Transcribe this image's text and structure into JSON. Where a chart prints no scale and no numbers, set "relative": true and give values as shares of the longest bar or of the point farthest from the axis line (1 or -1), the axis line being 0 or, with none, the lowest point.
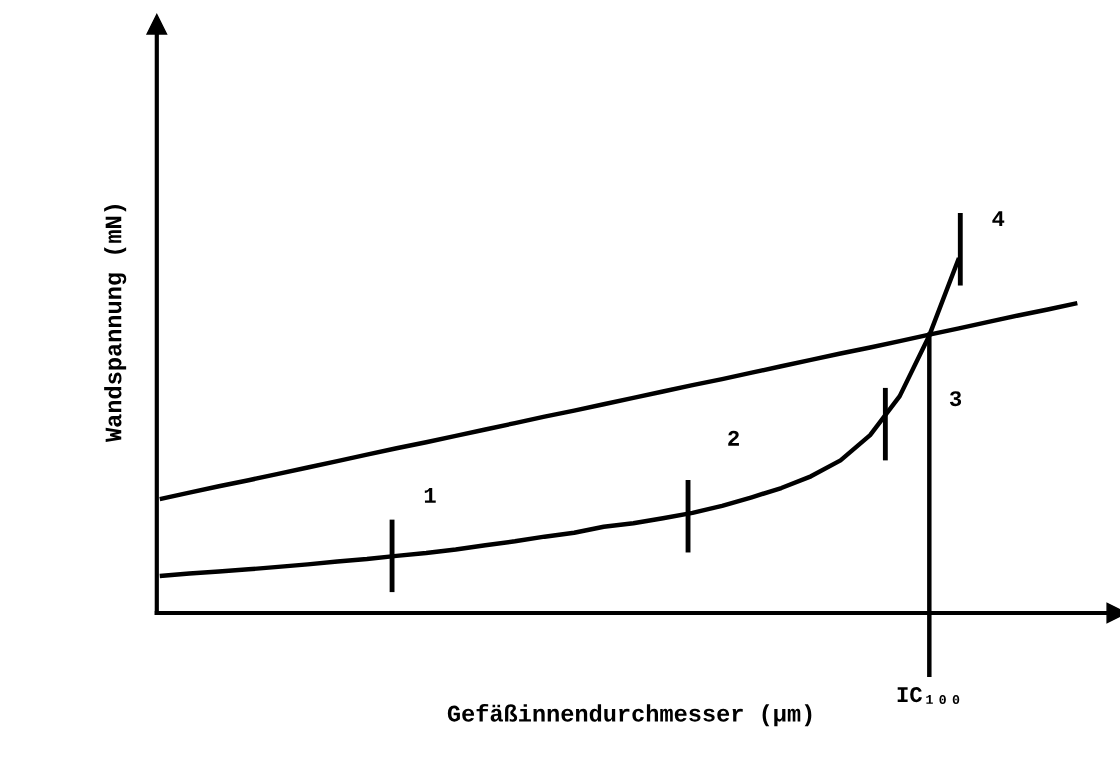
{
  "chart_data": {
    "type": "line",
    "relative": true,
    "xlabel": "Gefäßinnendurchmesser (µm)",
    "ylabel": "Wandspannung (mN)",
    "categories": [
      null,
      null,
      null,
      null,
      null,
      null,
      null,
      null,
      null,
      null,
      null,
      null,
      null,
      null,
      null,
      null,
      null,
      null,
      null,
      null,
      null,
      null,
      null,
      null,
      null,
      null,
      null,
      null,
      null,
      null,
      null,
      null
    ],
    "series": [
      {
        "color": "#000000",
        "values": [
          0.321,
          0.339,
          0.357,
          0.374,
          0.392,
          0.41,
          0.428,
          0.446,
          0.464,
          0.481,
          0.499,
          0.517,
          0.535,
          0.553,
          0.57,
          0.588,
          0.606,
          0.624,
          0.642,
          0.659,
          0.677,
          0.695,
          0.713,
          0.731,
          0.748,
          0.766,
          0.784,
          0.802,
          0.82,
          0.838,
          0.855,
          0.873
        ]
      },
      {
        "color": "#000000",
        "values": [
          0.104,
          0.111,
          0.117,
          0.123,
          0.13,
          0.137,
          0.145,
          0.152,
          0.161,
          0.169,
          0.179,
          0.191,
          0.202,
          0.215,
          0.226,
          0.243,
          0.253,
          0.267,
          0.282,
          0.302,
          0.326,
          0.352,
          0.385,
          0.43,
          0.501,
          0.611,
          0.782,
          1.0,
          null,
          null,
          null,
          null
        ]
      }
    ],
    "annotations": [
      "1",
      "2",
      "3",
      "4",
      "IC₁₀₀"
    ],
    "marker": "none",
    "line_style": "solid"
  }
}
